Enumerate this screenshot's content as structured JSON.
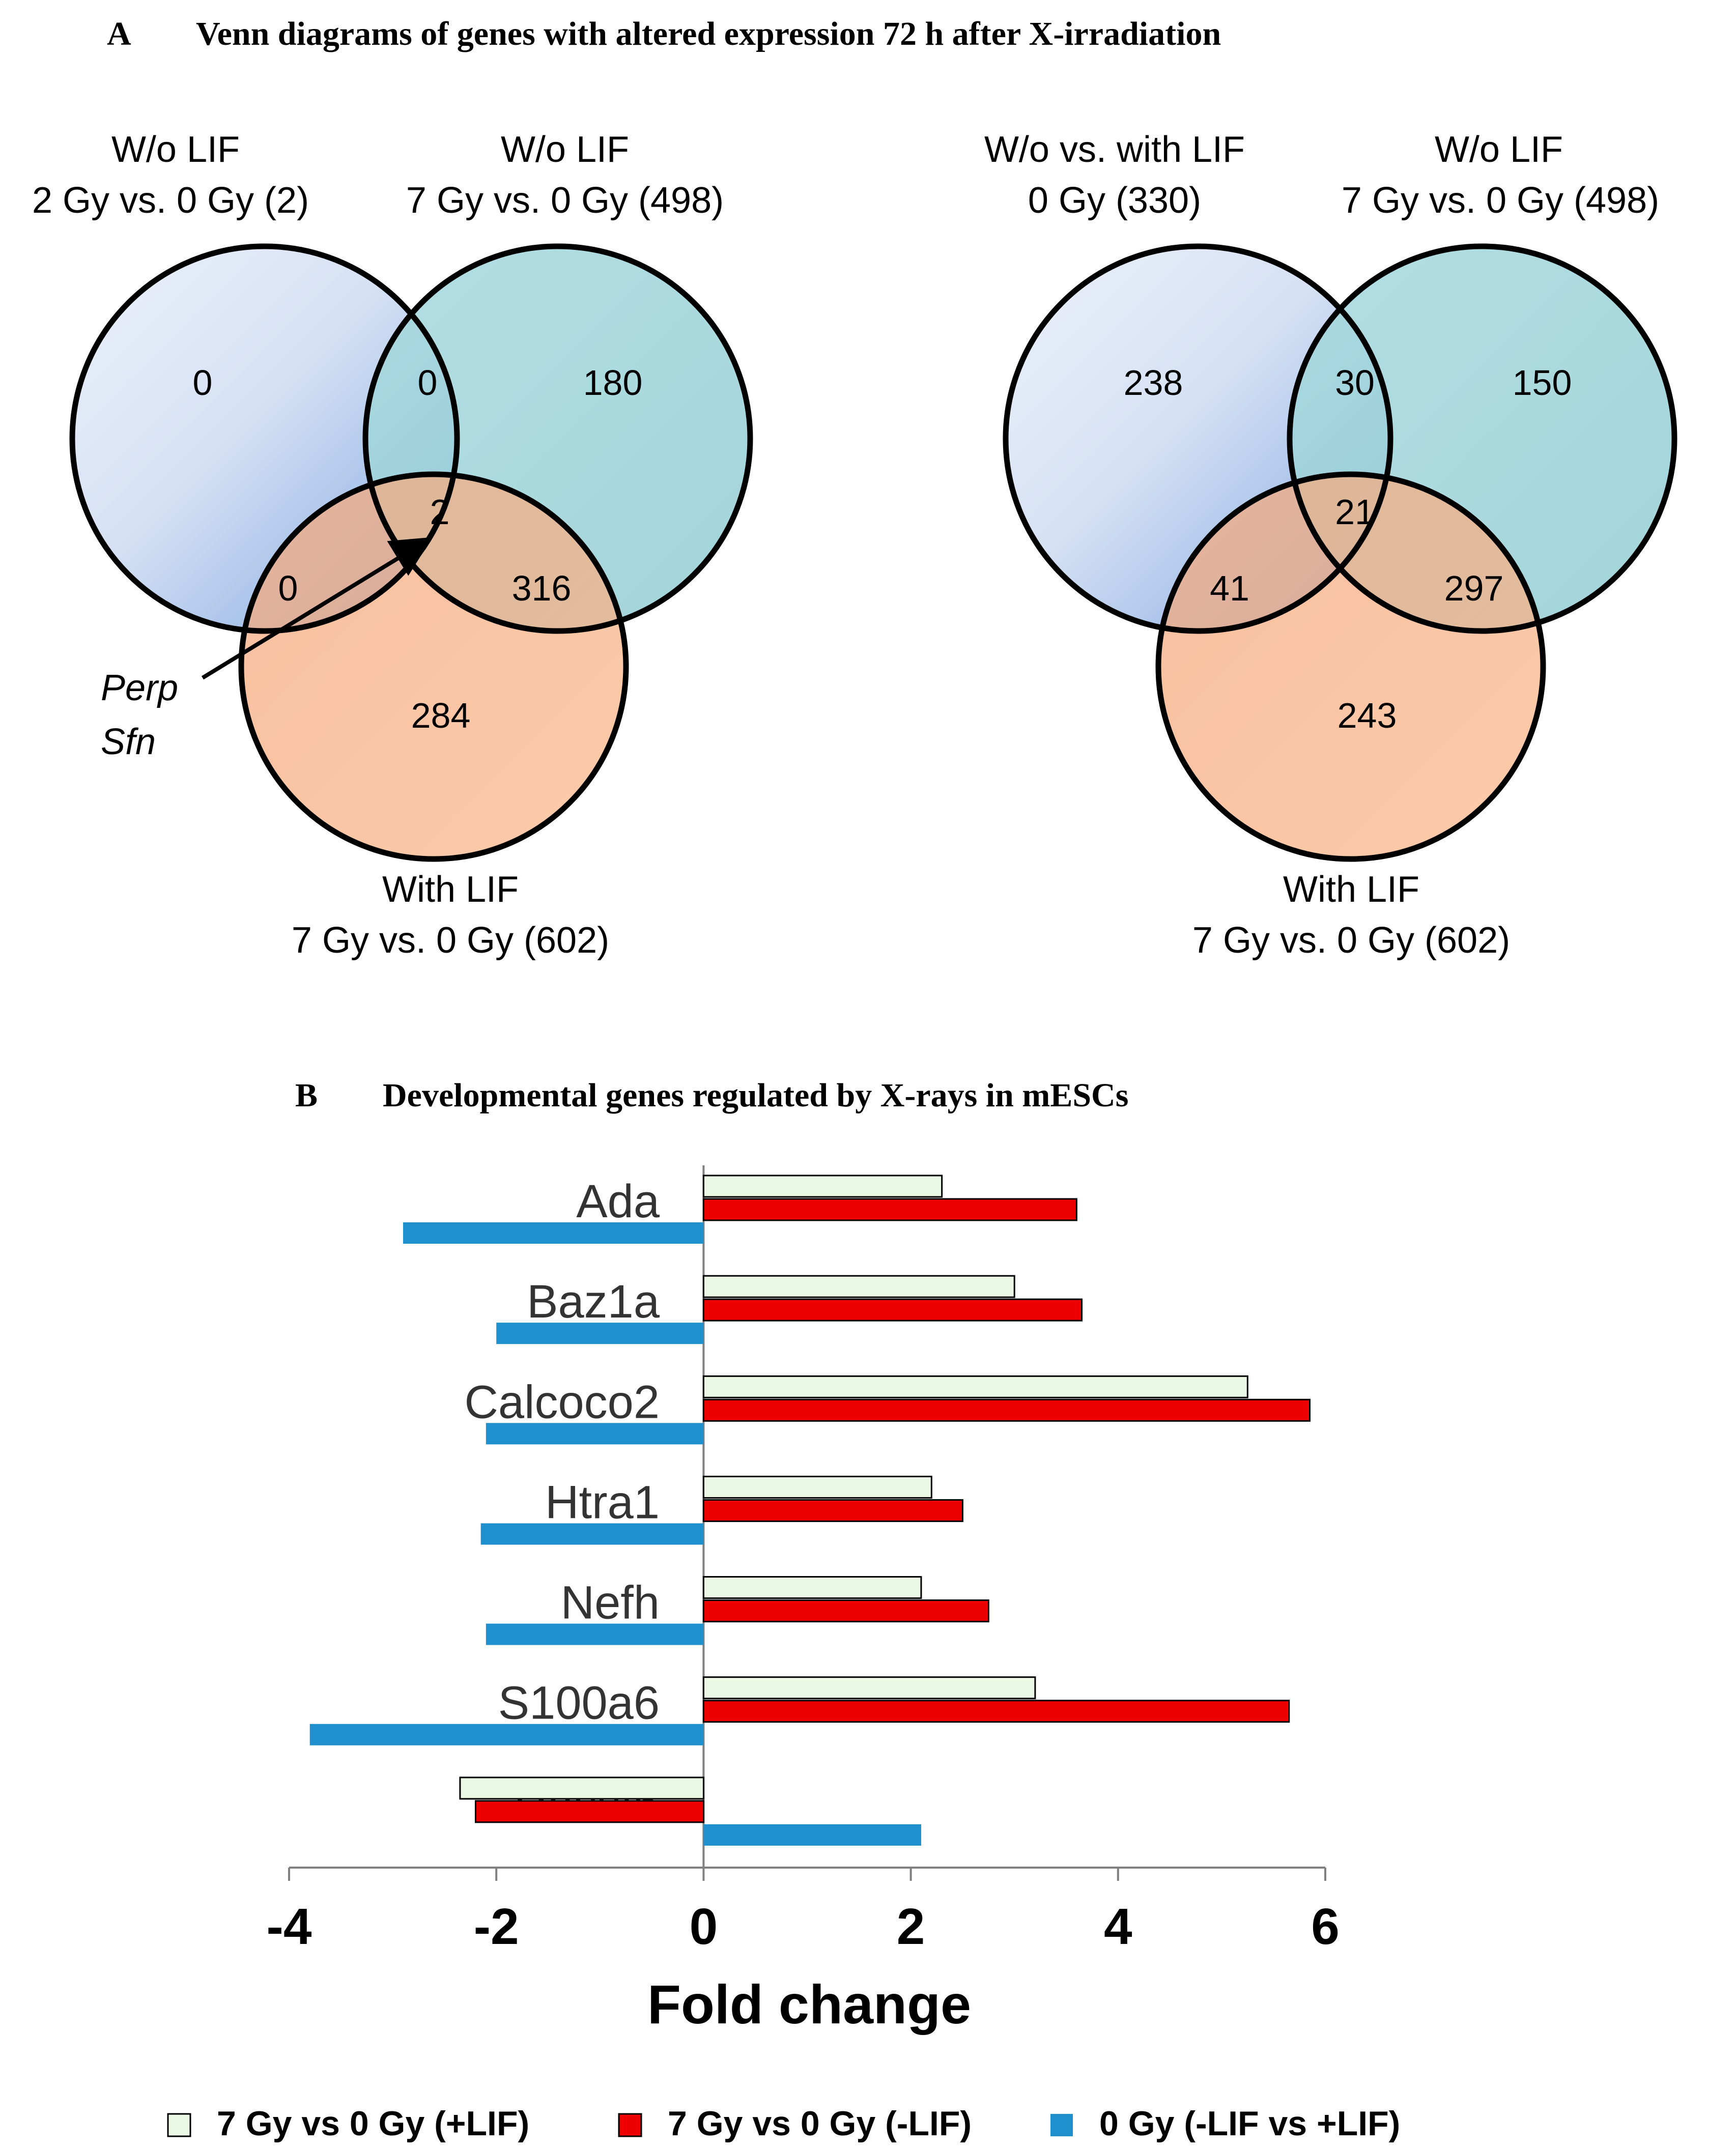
{
  "panel_a": {
    "letter": "A",
    "title": "Venn diagrams of genes with altered expression 72 h after X-irradiation",
    "venn_left": {
      "set1": {
        "line1": "W/o LIF",
        "line2": "2 Gy vs. 0 Gy (2)"
      },
      "set2": {
        "line1": "W/o LIF",
        "line2": "7 Gy vs. 0 Gy (498)"
      },
      "set3": {
        "line1": "With LIF",
        "line2": "7 Gy vs. 0 Gy (602)"
      },
      "regions": {
        "only1": "0",
        "only2": "180",
        "only3": "284",
        "r12": "0",
        "r13": "0",
        "r23": "316",
        "r123": "2"
      },
      "genes": [
        "Perp",
        "Sfn"
      ]
    },
    "venn_right": {
      "set1": {
        "line1": "W/o vs. with  LIF",
        "line2": "0 Gy (330)"
      },
      "set2": {
        "line1": "W/o LIF",
        "line2": "7 Gy vs. 0 Gy (498)"
      },
      "set3": {
        "line1": "With LIF",
        "line2": "7 Gy vs. 0 Gy (602)"
      },
      "regions": {
        "only1": "238",
        "only2": "150",
        "only3": "243",
        "r12": "30",
        "r13": "41",
        "r23": "297",
        "r123": "21"
      }
    }
  },
  "panel_b": {
    "letter": "B",
    "title": "Developmental genes regulated by X-rays in mESCs"
  },
  "chart_data": {
    "type": "bar",
    "orientation": "horizontal",
    "xlabel": "Fold change",
    "xlim": [
      -4,
      6
    ],
    "xticks": [
      "-4",
      "-2",
      "0",
      "2",
      "4",
      "6"
    ],
    "categories": [
      "Ada",
      "Baz1a",
      "Calcoco2",
      "Htra1",
      "Nefh",
      "S100a6",
      "Rassf6"
    ],
    "series": [
      {
        "name": "7 Gy vs 0 Gy (+LIF)",
        "color": "#eaf8e4",
        "values": [
          2.3,
          3.0,
          5.25,
          2.2,
          2.1,
          3.2,
          -2.35
        ]
      },
      {
        "name": "7 Gy vs 0 Gy (-LIF)",
        "color": "#ee0000",
        "values": [
          3.6,
          3.65,
          5.85,
          2.5,
          2.75,
          5.65,
          -2.2
        ]
      },
      {
        "name": "0 Gy (-LIF vs +LIF)",
        "color": "#1f8fce",
        "values": [
          -2.9,
          -2.0,
          -2.1,
          -2.15,
          -2.1,
          -3.8,
          2.1
        ]
      }
    ]
  }
}
